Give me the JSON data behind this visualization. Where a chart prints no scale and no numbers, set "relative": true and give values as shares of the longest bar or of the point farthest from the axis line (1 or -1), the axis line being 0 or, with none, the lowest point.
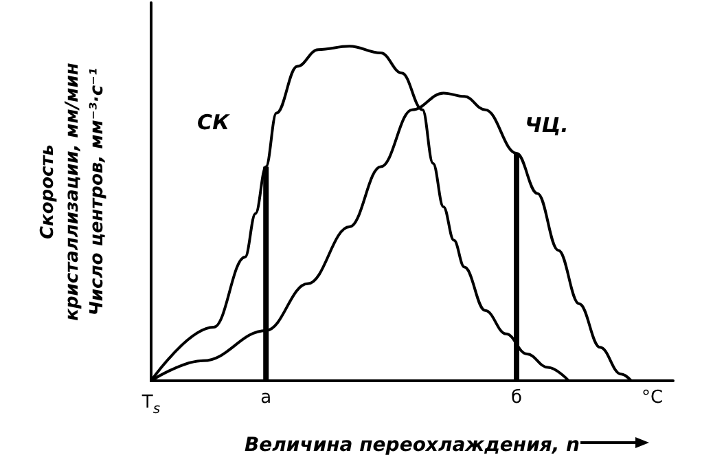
{
  "chart_data": {
    "type": "line",
    "relative": true,
    "marker": "none",
    "line_style": "solid",
    "legend": false,
    "xlabel": "Величина переохлаждения, n",
    "ylabel": "Скорость\nкристаллизации, мм/мин\nЧисло центров, мм⁻³·с⁻¹",
    "categories": [
      "T$_{s}$",
      null,
      null,
      null,
      null,
      null,
      null,
      null,
      null,
      null,
      null,
      "а",
      null,
      null,
      null,
      null,
      null,
      null,
      null,
      null,
      null,
      null,
      null,
      null,
      null,
      null,
      null,
      null,
      null,
      null,
      null,
      null,
      null,
      null,
      null,
      "б",
      null,
      null,
      null,
      null,
      null,
      null,
      null,
      null,
      null,
      null,
      null,
      null,
      "°C",
      null,
      null
    ],
    "series": [
      {
        "name": "СК",
        "color": "#000000",
        "values": [
          0,
          null,
          null,
          null,
          null,
          null,
          0.16,
          null,
          null,
          0.37,
          0.5,
          0.64,
          0.8,
          null,
          0.94,
          null,
          0.99,
          null,
          null,
          1,
          null,
          null,
          0.98,
          null,
          0.92,
          null,
          0.81,
          0.65,
          0.52,
          0.42,
          0.34,
          null,
          0.21,
          null,
          0.14,
          null,
          0.08,
          null,
          0.04,
          null,
          0,
          null,
          null,
          null,
          null,
          null,
          null,
          null,
          null,
          null,
          null
        ]
      },
      {
        "name": "ЧЦ.",
        "color": "#000000",
        "values": [
          0,
          null,
          null,
          null,
          null,
          0.06,
          null,
          null,
          null,
          null,
          null,
          0.15,
          null,
          null,
          null,
          0.29,
          null,
          null,
          null,
          0.46,
          null,
          null,
          0.64,
          null,
          null,
          0.81,
          null,
          null,
          0.86,
          null,
          0.85,
          null,
          0.81,
          null,
          null,
          0.68,
          null,
          0.56,
          null,
          0.39,
          null,
          0.23,
          null,
          0.1,
          null,
          0.02,
          0,
          null,
          null,
          null,
          null
        ]
      },
      {
        "type": "bar",
        "color": "#000000",
        "values": [
          null,
          null,
          null,
          null,
          null,
          null,
          null,
          null,
          null,
          null,
          null,
          0.64,
          null,
          null,
          null,
          null,
          null,
          null,
          null,
          null,
          null,
          null,
          null,
          null,
          null,
          null,
          null,
          null,
          null,
          null,
          null,
          null,
          null,
          null,
          null,
          0.68,
          null,
          null,
          null,
          null,
          null,
          null,
          null,
          null,
          null,
          null,
          null,
          null,
          null,
          null,
          null
        ]
      }
    ]
  }
}
